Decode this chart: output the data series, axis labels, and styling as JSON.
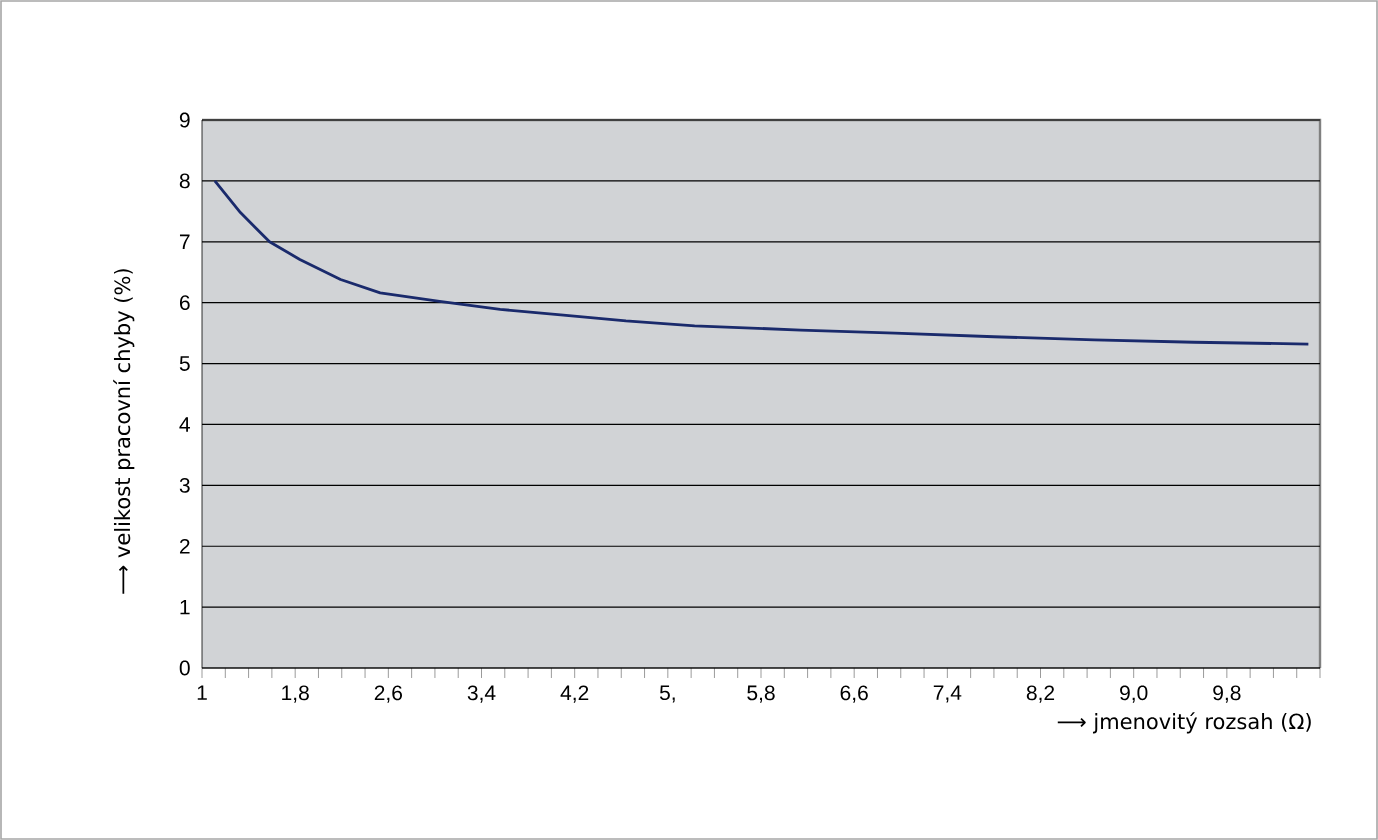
{
  "chart_data": {
    "type": "line",
    "xlabel": "⟶  jmenovitý rozsah (Ω)",
    "ylabel": "⟶  velikost pracovní chyby (%)",
    "x": [
      1.11,
      1.33,
      1.58,
      1.84,
      2.19,
      2.53,
      3.04,
      3.56,
      4.08,
      4.64,
      5.23,
      6.14,
      6.95,
      7.8,
      8.66,
      9.52,
      10.5
    ],
    "values": [
      8.0,
      7.48,
      7.0,
      6.71,
      6.38,
      6.16,
      6.02,
      5.89,
      5.8,
      5.7,
      5.62,
      5.55,
      5.5,
      5.44,
      5.39,
      5.35,
      5.32
    ],
    "color": "#1a2a6c",
    "marker": "none",
    "line_style": "solid",
    "grid": "y",
    "xlim": [
      1,
      10.6
    ],
    "ylim": [
      0,
      9
    ],
    "yticks": [
      0,
      1,
      2,
      3,
      4,
      5,
      6,
      7,
      8,
      9
    ],
    "xticks": [
      1,
      {
        "value": 1.2,
        "label": null
      },
      {
        "value": 1.4,
        "label": null
      },
      {
        "value": 1.6,
        "label": null
      },
      {
        "value": 1.8,
        "label": "1,8"
      },
      {
        "value": 2.0,
        "label": null
      },
      {
        "value": 2.2,
        "label": null
      },
      {
        "value": 2.4,
        "label": null
      },
      {
        "value": 2.6,
        "label": "2,6"
      },
      {
        "value": 2.8,
        "label": null
      },
      {
        "value": 3.0,
        "label": null
      },
      {
        "value": 3.2,
        "label": null
      },
      {
        "value": 3.4,
        "label": "3,4"
      },
      {
        "value": 3.6,
        "label": null
      },
      {
        "value": 3.8,
        "label": null
      },
      {
        "value": 4.0,
        "label": null
      },
      {
        "value": 4.2,
        "label": "4,2"
      },
      {
        "value": 4.4,
        "label": null
      },
      {
        "value": 4.6,
        "label": null
      },
      {
        "value": 4.8,
        "label": null
      },
      {
        "value": 5.0,
        "label": "5,"
      },
      {
        "value": 5.2,
        "label": null
      },
      {
        "value": 5.4,
        "label": null
      },
      {
        "value": 5.6,
        "label": null
      },
      {
        "value": 5.8,
        "label": "5,8"
      },
      {
        "value": 6.0,
        "label": null
      },
      {
        "value": 6.2,
        "label": null
      },
      {
        "value": 6.4,
        "label": null
      },
      {
        "value": 6.6,
        "label": "6,6"
      },
      {
        "value": 6.8,
        "label": null
      },
      {
        "value": 7.0,
        "label": null
      },
      {
        "value": 7.2,
        "label": null
      },
      {
        "value": 7.4,
        "label": "7,4"
      },
      {
        "value": 7.6,
        "label": null
      },
      {
        "value": 7.8,
        "label": null
      },
      {
        "value": 8.0,
        "label": null
      },
      {
        "value": 8.2,
        "label": "8,2"
      },
      {
        "value": 8.4,
        "label": null
      },
      {
        "value": 8.6,
        "label": null
      },
      {
        "value": 8.8,
        "label": null
      },
      {
        "value": 9.0,
        "label": "9,0"
      },
      {
        "value": 9.2,
        "label": null
      },
      {
        "value": 9.4,
        "label": null
      },
      {
        "value": 9.6,
        "label": null
      },
      {
        "value": 9.8,
        "label": "9,8"
      },
      {
        "value": 10.0,
        "label": null
      },
      {
        "value": 10.2,
        "label": null
      },
      {
        "value": 10.4,
        "label": null
      },
      {
        "value": 10.6,
        "label": null
      }
    ]
  }
}
